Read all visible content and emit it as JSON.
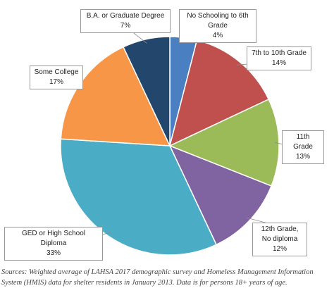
{
  "chart_data": {
    "type": "pie",
    "title": "",
    "slices": [
      {
        "label": "No Schooling to 6th Grade",
        "value": 4,
        "display": "4%",
        "color": "#4a7fc1"
      },
      {
        "label": "7th to 10th Grade",
        "value": 14,
        "display": "14%",
        "color": "#c0504d"
      },
      {
        "label": "11th Grade",
        "value": 13,
        "display": "13%",
        "color": "#9bbb59"
      },
      {
        "label": "12th Grade, No diploma",
        "value": 12,
        "display": "12%",
        "color": "#8064a2"
      },
      {
        "label": "GED or High School Diploma",
        "value": 33,
        "display": "33%",
        "color": "#4bacc6"
      },
      {
        "label": "Some College",
        "value": 17,
        "display": "17%",
        "color": "#f79646"
      },
      {
        "label": "B.A. or Graduate Degree",
        "value": 7,
        "display": "7%",
        "color": "#23476c"
      }
    ],
    "start_angle": "12 o'clock",
    "direction": "clockwise"
  },
  "source_note": "Sources: Weighted average of LAHSA 2017 demographic survey and Homeless Management Information System (HMIS) data for shelter residents in January 2013. Data is for persons 18+ years of age."
}
